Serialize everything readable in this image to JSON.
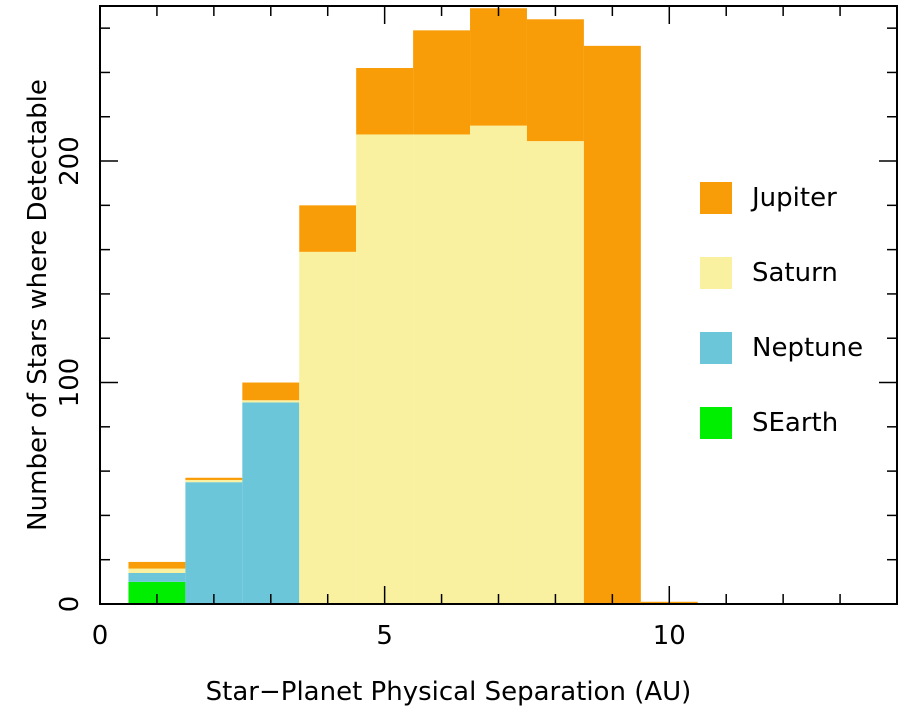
{
  "chart_data": {
    "type": "bar",
    "stacked": true,
    "xlabel": "Star−Planet Physical Separation (AU)",
    "ylabel": "Number of Stars where Detectable",
    "xlim": [
      0,
      14
    ],
    "ylim": [
      0,
      270
    ],
    "x_ticks": [
      0,
      5,
      10
    ],
    "y_ticks": [
      0,
      100,
      200
    ],
    "bin_width": 1,
    "bin_centers": [
      1,
      2,
      3,
      4,
      5,
      6,
      7,
      8,
      9,
      10
    ],
    "legend_position": "right",
    "series": [
      {
        "name": "SEarth",
        "color": "#00ee00",
        "values": [
          10,
          0,
          0,
          0,
          0,
          0,
          0,
          0,
          0,
          0
        ]
      },
      {
        "name": "Neptune",
        "color": "#6cc6d9",
        "values": [
          4,
          55,
          91,
          0,
          0,
          0,
          0,
          0,
          0,
          0
        ]
      },
      {
        "name": "Saturn",
        "color": "#f9f19f",
        "values": [
          2,
          1,
          1,
          159,
          212,
          212,
          216,
          209,
          0,
          0
        ]
      },
      {
        "name": "Jupiter",
        "color": "#f89d07",
        "values": [
          3,
          1,
          8,
          21,
          30,
          47,
          53,
          55,
          252,
          1
        ]
      }
    ]
  }
}
